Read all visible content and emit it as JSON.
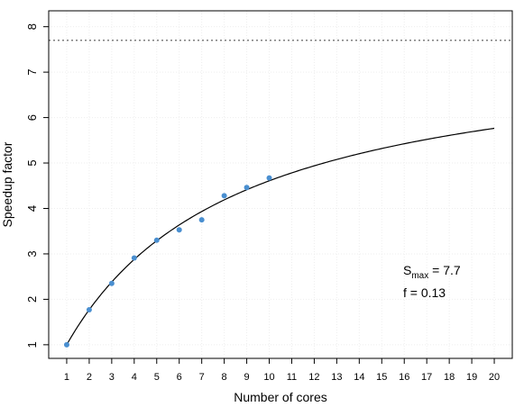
{
  "chart_data": {
    "type": "scatter",
    "xlabel": "Number of cores",
    "ylabel": "Speedup factor",
    "x_ticks": [
      1,
      2,
      3,
      4,
      5,
      6,
      7,
      8,
      9,
      10,
      11,
      12,
      13,
      14,
      15,
      16,
      17,
      18,
      19,
      20
    ],
    "y_ticks": [
      1,
      2,
      3,
      4,
      5,
      6,
      7,
      8
    ],
    "xlim": [
      0.2,
      20.8
    ],
    "ylim": [
      0.7,
      8.35
    ],
    "grid": true,
    "points": {
      "x": [
        1,
        2,
        3,
        4,
        5,
        6,
        7,
        8,
        9,
        10
      ],
      "y": [
        1.0,
        1.77,
        2.35,
        2.91,
        3.3,
        3.53,
        3.75,
        4.28,
        4.46,
        4.67
      ],
      "color": "#4a8fd0"
    },
    "fit_curve": {
      "model": "amdahl",
      "f": 0.13,
      "x_range": [
        1,
        20
      ],
      "color": "#000000"
    },
    "reference_line": {
      "y": 7.7,
      "style": "dotted",
      "color": "#555555"
    },
    "annotation": {
      "s_label": "S",
      "s_subscript": "max",
      "s_value": " = 7.7",
      "f_text": "f = 0.13"
    }
  }
}
